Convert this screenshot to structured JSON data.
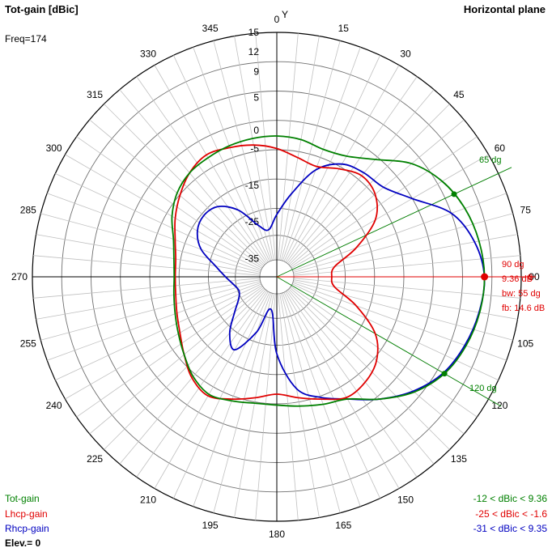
{
  "header": {
    "title": "Tot-gain [dBic]",
    "plane": "Horizontal plane",
    "freq": "Freq=174",
    "y_label": "Y"
  },
  "legend": {
    "tot": "Tot-gain",
    "lhcp": "Lhcp-gain",
    "rhcp": "Rhcp-gain",
    "elev": "Elev.= 0",
    "tot_range": "-12 < dBic < 9.36",
    "lhcp_range": "-25 < dBic < -1.6",
    "rhcp_range": "-31 < dBic < 9.35"
  },
  "markers": {
    "beam_left": "65 dg",
    "beam_right": "120 dg",
    "max_angle": "90 dg",
    "max_gain": "9.36 dB",
    "bw": "bw: 55 dg",
    "fb": "fb: 14.6 dB",
    "edge_zero": "0"
  },
  "colors": {
    "tot": "#008000",
    "lhcp": "#e00000",
    "rhcp": "#0000c0",
    "grid": "#c0c0c0",
    "axis": "#000000"
  },
  "chart_data": {
    "type": "polar",
    "angle_unit": "degrees (0 = Y axis, clockwise)",
    "angle_ticks": [
      "0",
      "15",
      "30",
      "45",
      "60",
      "75",
      "90",
      "105",
      "120",
      "135",
      "150",
      "165",
      "180",
      "195",
      "210",
      "225",
      "240",
      "255",
      "270",
      "285",
      "300",
      "315",
      "330",
      "345"
    ],
    "radial_ticks": [
      "15",
      "12",
      "9",
      "5",
      "0",
      "-5",
      "-15",
      "-25",
      "-35"
    ],
    "radial_tick_values": [
      15,
      12,
      9,
      5,
      0,
      -5,
      -15,
      -25,
      -35
    ],
    "series": [
      {
        "name": "Tot-gain",
        "color": "#008000",
        "points": [
          [
            0,
            -1.6
          ],
          [
            10,
            -2.0
          ],
          [
            20,
            -3.0
          ],
          [
            30,
            -2.0
          ],
          [
            40,
            1.0
          ],
          [
            50,
            4.5
          ],
          [
            60,
            6.8
          ],
          [
            70,
            8.2
          ],
          [
            80,
            9.0
          ],
          [
            90,
            9.36
          ],
          [
            100,
            9.1
          ],
          [
            110,
            8.4
          ],
          [
            120,
            7.2
          ],
          [
            130,
            5.0
          ],
          [
            140,
            2.0
          ],
          [
            150,
            -1.5
          ],
          [
            160,
            -3.0
          ],
          [
            170,
            -4.2
          ],
          [
            180,
            -5.0
          ],
          [
            190,
            -5.0
          ],
          [
            200,
            -4.0
          ],
          [
            210,
            -3.0
          ],
          [
            220,
            -4.5
          ],
          [
            230,
            -7.0
          ],
          [
            240,
            -9.0
          ],
          [
            250,
            -10.5
          ],
          [
            260,
            -11.5
          ],
          [
            270,
            -12.0
          ],
          [
            280,
            -11.5
          ],
          [
            290,
            -10.0
          ],
          [
            300,
            -7.0
          ],
          [
            310,
            -4.5
          ],
          [
            320,
            -3.0
          ],
          [
            330,
            -2.5
          ],
          [
            340,
            -2.0
          ],
          [
            350,
            -1.7
          ],
          [
            360,
            -1.6
          ]
        ]
      },
      {
        "name": "Lhcp-gain",
        "color": "#e00000",
        "points": [
          [
            0,
            -5.0
          ],
          [
            10,
            -7.0
          ],
          [
            20,
            -8.0
          ],
          [
            30,
            -6.0
          ],
          [
            40,
            -4.0
          ],
          [
            50,
            -5.0
          ],
          [
            60,
            -9.0
          ],
          [
            70,
            -17.0
          ],
          [
            80,
            -24.0
          ],
          [
            90,
            -25.0
          ],
          [
            100,
            -24.0
          ],
          [
            110,
            -17.0
          ],
          [
            120,
            -9.0
          ],
          [
            130,
            -4.5
          ],
          [
            140,
            -2.5
          ],
          [
            150,
            -2.0
          ],
          [
            160,
            -4.5
          ],
          [
            170,
            -6.5
          ],
          [
            180,
            -8.0
          ],
          [
            190,
            -6.5
          ],
          [
            200,
            -4.5
          ],
          [
            210,
            -2.5
          ],
          [
            220,
            -4.0
          ],
          [
            230,
            -7.0
          ],
          [
            240,
            -9.5
          ],
          [
            250,
            -11.0
          ],
          [
            260,
            -12.0
          ],
          [
            270,
            -12.3
          ],
          [
            280,
            -12.0
          ],
          [
            290,
            -10.5
          ],
          [
            300,
            -8.0
          ],
          [
            310,
            -5.5
          ],
          [
            320,
            -3.0
          ],
          [
            330,
            -1.6
          ],
          [
            340,
            -2.5
          ],
          [
            350,
            -3.5
          ],
          [
            360,
            -5.0
          ]
        ]
      },
      {
        "name": "Rhcp-gain",
        "color": "#0000c0",
        "points": [
          [
            0,
            -23.0
          ],
          [
            10,
            -17.0
          ],
          [
            20,
            -9.0
          ],
          [
            30,
            -4.5
          ],
          [
            40,
            -3.0
          ],
          [
            50,
            -2.0
          ],
          [
            60,
            1.5
          ],
          [
            70,
            6.0
          ],
          [
            80,
            8.3
          ],
          [
            90,
            9.35
          ],
          [
            100,
            9.0
          ],
          [
            110,
            8.2
          ],
          [
            120,
            7.0
          ],
          [
            130,
            4.8
          ],
          [
            140,
            2.0
          ],
          [
            150,
            -1.5
          ],
          [
            160,
            -5.0
          ],
          [
            170,
            -9.0
          ],
          [
            180,
            -19.0
          ],
          [
            190,
            -31.0
          ],
          [
            200,
            -24.0
          ],
          [
            210,
            -17.0
          ],
          [
            220,
            -20.0
          ],
          [
            230,
            -25.0
          ],
          [
            240,
            -28.0
          ],
          [
            250,
            -29.0
          ],
          [
            260,
            -28.0
          ],
          [
            270,
            -26.0
          ],
          [
            280,
            -23.0
          ],
          [
            290,
            -18.0
          ],
          [
            300,
            -15.0
          ],
          [
            310,
            -14.0
          ],
          [
            320,
            -15.0
          ],
          [
            330,
            -19.0
          ],
          [
            340,
            -25.0
          ],
          [
            350,
            -27.0
          ],
          [
            360,
            -23.0
          ]
        ]
      }
    ],
    "beamwidth_lines_deg": [
      65,
      120
    ],
    "max_direction_deg": 90,
    "max_gain_dbic": 9.36
  }
}
